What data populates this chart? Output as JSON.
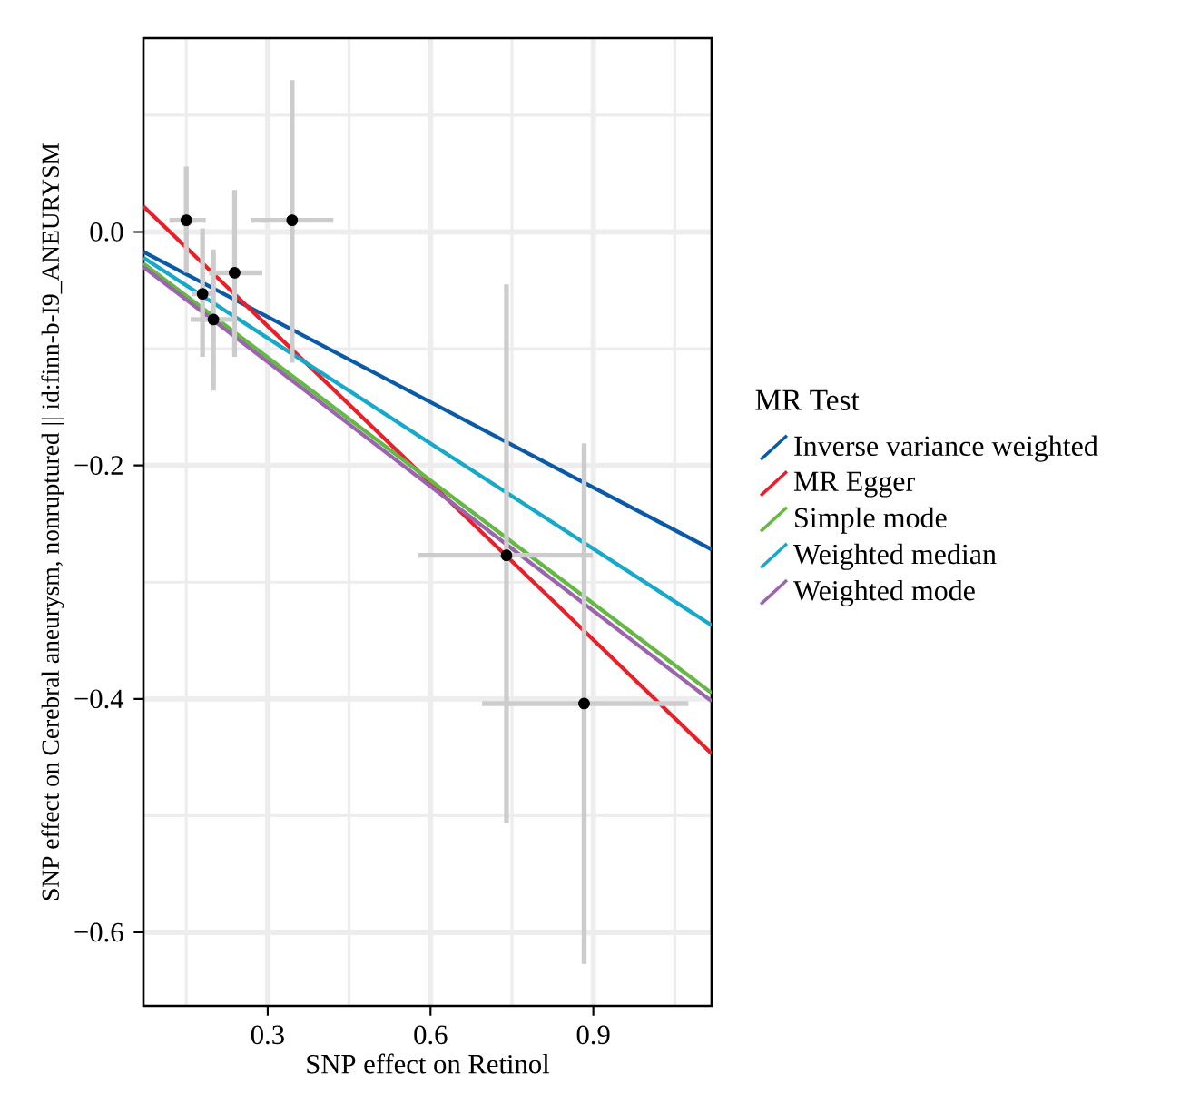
{
  "chart_data": {
    "type": "scatter",
    "xlabel": "SNP effect on Retinol",
    "ylabel": "SNP effect on Cerebral aneurysm, nonruptured || id:finn-b-I9_ANEURYSM",
    "legend_title": "MR Test",
    "xlim": [
      0.071,
      1.118
    ],
    "ylim": [
      -0.663,
      0.166
    ],
    "xticks": [
      0.3,
      0.6,
      0.9
    ],
    "yticks": [
      {
        "value": 0,
        "label": "0.0"
      },
      {
        "value": -0.2,
        "label": "−0.2"
      },
      {
        "value": -0.4,
        "label": "−0.4"
      },
      {
        "value": -0.6,
        "label": "−0.6"
      }
    ],
    "grid": true,
    "legend": "right",
    "series": [
      {
        "color": "#000000",
        "x": [
          0.15,
          0.18,
          0.2,
          0.239,
          0.345,
          0.74,
          0.883
        ],
        "values": [
          0.01,
          -0.053,
          -0.075,
          -0.035,
          0.01,
          -0.277,
          -0.404
        ],
        "errors": [
          [
            -0.035,
            0.056
          ],
          [
            -0.107,
            0.003
          ],
          [
            -0.136,
            -0.015
          ],
          [
            -0.107,
            0.036
          ],
          [
            -0.112,
            0.13
          ],
          [
            -0.506,
            -0.045
          ],
          [
            -0.627,
            -0.181
          ]
        ],
        "xerrors": [
          [
            0.119,
            0.186
          ],
          [
            0.16,
            0.2
          ],
          [
            0.158,
            0.242
          ],
          [
            0.192,
            0.29
          ],
          [
            0.27,
            0.421
          ],
          [
            0.578,
            0.899
          ],
          [
            0.695,
            1.075
          ]
        ]
      },
      {
        "type": "line",
        "name": "Inverse variance weighted",
        "color": "#0b5aa8",
        "x": [
          0.071,
          1.118
        ],
        "values": [
          -0.017,
          -0.272
        ]
      },
      {
        "type": "line",
        "name": "MR Egger",
        "color": "#e8202a",
        "x": [
          0.071,
          1.118
        ],
        "values": [
          0.022,
          -0.447
        ]
      },
      {
        "type": "line",
        "name": "Simple mode",
        "color": "#66b845",
        "x": [
          0.071,
          1.118
        ],
        "values": [
          -0.027,
          -0.395
        ]
      },
      {
        "type": "line",
        "name": "Weighted median",
        "color": "#17a9c9",
        "x": [
          0.071,
          1.118
        ],
        "values": [
          -0.022,
          -0.337
        ]
      },
      {
        "type": "line",
        "name": "Weighted mode",
        "color": "#9a65ad",
        "x": [
          0.071,
          1.118
        ],
        "values": [
          -0.03,
          -0.402
        ]
      }
    ]
  }
}
